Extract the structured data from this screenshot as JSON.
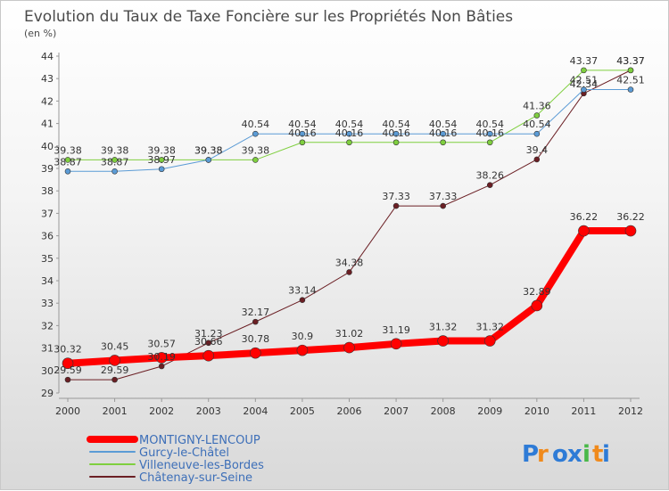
{
  "chart_data": {
    "type": "line",
    "title": "Evolution du Taux de Taxe Foncière sur les Propriétés Non Bâties",
    "subtitle": "(en %)",
    "x": [
      "2000",
      "2001",
      "2002",
      "2003",
      "2004",
      "2005",
      "2006",
      "2007",
      "2008",
      "2009",
      "2010",
      "2011",
      "2012"
    ],
    "ylim": [
      29,
      44
    ],
    "yticks": [
      29,
      30,
      31,
      32,
      33,
      34,
      35,
      36,
      37,
      38,
      39,
      40,
      41,
      42,
      43,
      44
    ],
    "series": [
      {
        "name": "Châtenay-sur-Seine",
        "color": "#6b1f24",
        "width": 1,
        "values": [
          29.59,
          29.59,
          30.19,
          31.23,
          32.17,
          33.14,
          34.38,
          37.33,
          37.33,
          38.26,
          39.4,
          42.34,
          43.37
        ],
        "labels": [
          "29.59",
          "29.59",
          "30.19",
          "31.23",
          "32.17",
          "33.14",
          "34.38",
          "37.33",
          "37.33",
          "38.26",
          "39.4",
          "42.34",
          "43.37"
        ]
      },
      {
        "name": "Villeneuve-les-Bordes",
        "color": "#7fcf3f",
        "width": 1,
        "values": [
          39.38,
          39.38,
          39.38,
          39.38,
          39.38,
          40.16,
          40.16,
          40.16,
          40.16,
          40.16,
          41.36,
          43.37,
          43.37
        ],
        "labels": [
          "39.38",
          "39.38",
          "39.38",
          "39.38",
          "39.38",
          "40.16",
          "40.16",
          "40.16",
          "40.16",
          "40.16",
          "41.36",
          "43.37",
          "43.37"
        ]
      },
      {
        "name": "Gurcy-le-Châtel",
        "color": "#5b9bd5",
        "width": 1,
        "values": [
          38.87,
          38.87,
          38.97,
          39.38,
          40.54,
          40.54,
          40.54,
          40.54,
          40.54,
          40.54,
          40.54,
          42.51,
          42.51
        ],
        "labels": [
          "38.87",
          "38.87",
          "38.97",
          "39.38",
          "40.54",
          "40.54",
          "40.54",
          "40.54",
          "40.54",
          "40.54",
          "40.54",
          "42.51",
          "42.51"
        ]
      },
      {
        "name": "MONTIGNY-LENCOUP",
        "color": "#ff0000",
        "width": 8,
        "values": [
          30.32,
          30.45,
          30.57,
          30.66,
          30.78,
          30.9,
          31.02,
          31.19,
          31.32,
          31.32,
          32.89,
          36.22,
          36.22
        ],
        "labels": [
          "30.32",
          "30.45",
          "30.57",
          "30.66",
          "30.78",
          "30.9",
          "31.02",
          "31.19",
          "31.32",
          "31.32",
          "32.89",
          "36.22",
          "36.22"
        ]
      }
    ],
    "legend_order": [
      "MONTIGNY-LENCOUP",
      "Gurcy-le-Châtel",
      "Villeneuve-les-Bordes",
      "Châtenay-sur-Seine"
    ]
  },
  "logo": {
    "text": "Proxiti",
    "letter_colors": [
      "#2e7bd6",
      "#f08a1c",
      "#2e7bd6",
      "#2e7bd6",
      "#49b848",
      "#f08a1c",
      "#2e7bd6"
    ]
  }
}
